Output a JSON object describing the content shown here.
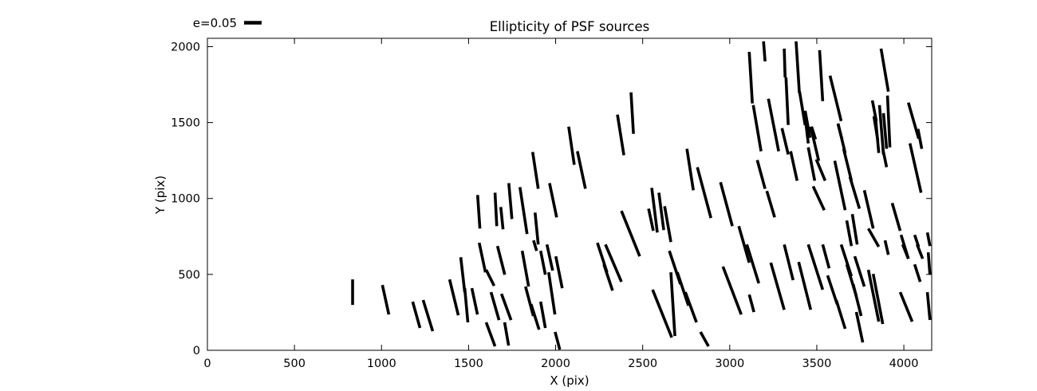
{
  "figure": {
    "background": "#ffffff",
    "frame_color": "#000000"
  },
  "chart_data": {
    "type": "scatter",
    "subtype": "psf-ellipticity-whisker-plot",
    "title": "Ellipticity of PSF sources",
    "xlabel": "X (pix)",
    "ylabel": "Y (pix)",
    "xlim": [
      0,
      4160
    ],
    "ylim": [
      0,
      2055
    ],
    "xticks": [
      0,
      500,
      1000,
      1500,
      2000,
      2500,
      3000,
      3500,
      4000
    ],
    "yticks": [
      0,
      500,
      1000,
      1500,
      2000
    ],
    "grid": false,
    "legend": {
      "label": "e=0.05",
      "position": "above-axes-upper-left",
      "sample_length_data_units": 94
    },
    "line_color": "#000000",
    "whisker_stroke_px": 3.6,
    "segments": [
      [
        834,
        467,
        834,
        299
      ],
      [
        1005,
        430,
        1042,
        236
      ],
      [
        1179,
        320,
        1221,
        147
      ],
      [
        1239,
        331,
        1294,
        126
      ],
      [
        1391,
        467,
        1441,
        231
      ],
      [
        1455,
        613,
        1478,
        383
      ],
      [
        1478,
        409,
        1496,
        184
      ],
      [
        1561,
        708,
        1597,
        514
      ],
      [
        1601,
        530,
        1647,
        425
      ],
      [
        1519,
        409,
        1551,
        236
      ],
      [
        1601,
        184,
        1652,
        26
      ],
      [
        1707,
        184,
        1730,
        31
      ],
      [
        1666,
        687,
        1708,
        498
      ],
      [
        1629,
        383,
        1675,
        199
      ],
      [
        1689,
        372,
        1744,
        199
      ],
      [
        1808,
        655,
        1845,
        420
      ],
      [
        1827,
        420,
        1872,
        226
      ],
      [
        1859,
        304,
        1905,
        136
      ],
      [
        1914,
        655,
        1941,
        498
      ],
      [
        1914,
        320,
        1941,
        147
      ],
      [
        1950,
        697,
        1983,
        525
      ],
      [
        1960,
        514,
        1996,
        236
      ],
      [
        1873,
        724,
        1891,
        655
      ],
      [
        2001,
        619,
        2038,
        409
      ],
      [
        1997,
        121,
        2024,
        5
      ],
      [
        1552,
        1023,
        1565,
        802
      ],
      [
        1652,
        1038,
        1662,
        818
      ],
      [
        1685,
        944,
        1698,
        797
      ],
      [
        1731,
        1101,
        1749,
        865
      ],
      [
        1795,
        1075,
        1836,
        766
      ],
      [
        1868,
        1306,
        1900,
        1064
      ],
      [
        1882,
        907,
        1900,
        697
      ],
      [
        1965,
        1101,
        2006,
        876
      ],
      [
        2075,
        1473,
        2107,
        1222
      ],
      [
        2125,
        1311,
        2171,
        1064
      ],
      [
        2355,
        1552,
        2392,
        1285
      ],
      [
        2378,
        918,
        2483,
        619
      ],
      [
        2534,
        933,
        2561,
        787
      ],
      [
        2552,
        1070,
        2584,
        776
      ],
      [
        2593,
        1038,
        2621,
        792
      ],
      [
        2626,
        949,
        2662,
        713
      ],
      [
        2433,
        1699,
        2447,
        1426
      ],
      [
        2240,
        708,
        2295,
        514
      ],
      [
        2277,
        566,
        2327,
        393
      ],
      [
        2286,
        697,
        2378,
        451
      ],
      [
        2557,
        399,
        2667,
        84
      ],
      [
        2662,
        514,
        2685,
        94
      ],
      [
        2653,
        655,
        2717,
        435
      ],
      [
        2699,
        514,
        2763,
        294
      ],
      [
        2745,
        383,
        2809,
        184
      ],
      [
        2832,
        121,
        2878,
        26
      ],
      [
        2961,
        551,
        3066,
        236
      ],
      [
        3052,
        818,
        3112,
        577
      ],
      [
        3112,
        367,
        3139,
        252
      ],
      [
        3112,
        1966,
        3130,
        1626
      ],
      [
        3135,
        1615,
        3180,
        1311
      ],
      [
        3194,
        2035,
        3203,
        1903
      ],
      [
        3222,
        1657,
        3281,
        1311
      ],
      [
        3313,
        1987,
        3318,
        1798
      ],
      [
        3323,
        1798,
        3336,
        1484
      ],
      [
        3300,
        1463,
        3336,
        1290
      ],
      [
        3381,
        2035,
        3400,
        1694
      ],
      [
        3401,
        1704,
        3433,
        1484
      ],
      [
        3433,
        1578,
        3461,
        1400
      ],
      [
        3470,
        1473,
        3493,
        1390
      ],
      [
        3516,
        1977,
        3534,
        1641
      ],
      [
        3576,
        1809,
        3640,
        1510
      ],
      [
        3622,
        1489,
        3645,
        1390
      ],
      [
        3819,
        1646,
        3842,
        1510
      ],
      [
        3869,
        1987,
        3911,
        1704
      ],
      [
        3860,
        1615,
        3883,
        1290
      ],
      [
        3828,
        1542,
        3851,
        1379
      ],
      [
        3837,
        1536,
        3856,
        1300
      ],
      [
        3883,
        1562,
        3901,
        1327
      ],
      [
        3906,
        1678,
        3920,
        1337
      ],
      [
        4026,
        1631,
        4085,
        1395
      ],
      [
        4081,
        1458,
        4103,
        1327
      ],
      [
        2754,
        1327,
        2791,
        1054
      ],
      [
        2814,
        1206,
        2892,
        871
      ],
      [
        2947,
        1107,
        3015,
        818
      ],
      [
        3158,
        1253,
        3203,
        1064
      ],
      [
        3213,
        1049,
        3258,
        876
      ],
      [
        3350,
        1311,
        3387,
        1117
      ],
      [
        3433,
        1536,
        3451,
        1363
      ],
      [
        3465,
        1473,
        3511,
        1248
      ],
      [
        3451,
        1337,
        3488,
        1117
      ],
      [
        3497,
        1258,
        3548,
        1117
      ],
      [
        3479,
        1080,
        3543,
        923
      ],
      [
        3603,
        1248,
        3663,
        923
      ],
      [
        3622,
        1494,
        3663,
        1300
      ],
      [
        3654,
        1327,
        3699,
        1117
      ],
      [
        3690,
        1143,
        3745,
        933
      ],
      [
        3672,
        855,
        3699,
        687
      ],
      [
        3704,
        897,
        3732,
        697
      ],
      [
        3773,
        1054,
        3824,
        802
      ],
      [
        3796,
        802,
        3856,
        682
      ],
      [
        3879,
        1327,
        3901,
        1206
      ],
      [
        3933,
        970,
        3979,
        787
      ],
      [
        3984,
        760,
        4026,
        603
      ],
      [
        4035,
        1363,
        4099,
        1038
      ],
      [
        4062,
        760,
        4085,
        682
      ],
      [
        4135,
        776,
        4150,
        687
      ],
      [
        3098,
        697,
        3167,
        441
      ],
      [
        3236,
        577,
        3313,
        267
      ],
      [
        3313,
        697,
        3364,
        462
      ],
      [
        3396,
        582,
        3465,
        267
      ],
      [
        3451,
        697,
        3534,
        399
      ],
      [
        3562,
        493,
        3617,
        304
      ],
      [
        3612,
        330,
        3663,
        142
      ],
      [
        3534,
        697,
        3571,
        540
      ],
      [
        3640,
        697,
        3699,
        488
      ],
      [
        3672,
        566,
        3727,
        357
      ],
      [
        3709,
        435,
        3755,
        226
      ],
      [
        3727,
        252,
        3764,
        52
      ],
      [
        3718,
        619,
        3773,
        420
      ],
      [
        3796,
        530,
        3856,
        189
      ],
      [
        3824,
        503,
        3879,
        173
      ],
      [
        3892,
        724,
        3911,
        629
      ],
      [
        3993,
        697,
        4026,
        603
      ],
      [
        4062,
        566,
        4094,
        451
      ],
      [
        4076,
        697,
        4108,
        603
      ],
      [
        3979,
        383,
        4048,
        189
      ],
      [
        4135,
        383,
        4150,
        200
      ],
      [
        4140,
        645,
        4150,
        498
      ]
    ]
  }
}
